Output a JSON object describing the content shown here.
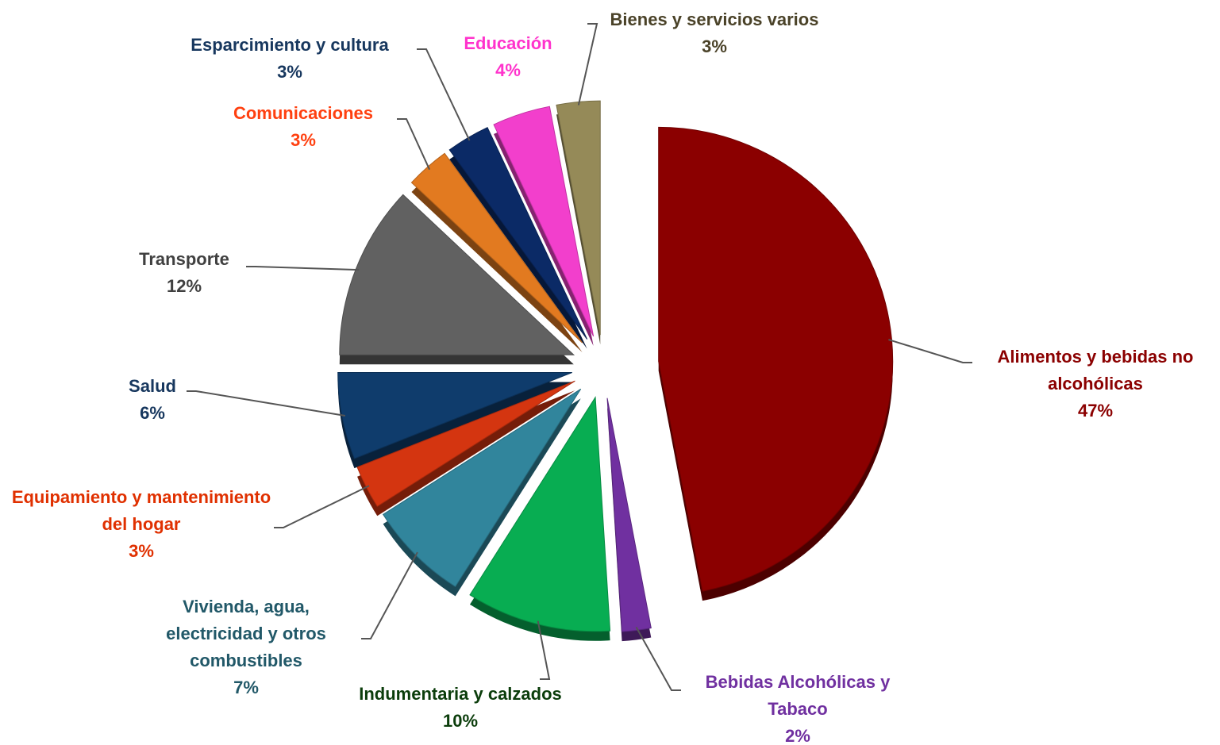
{
  "chart_data": {
    "type": "pie",
    "categories": [
      "Alimentos y bebidas no alcohólicas",
      "Bebidas Alcohólicas y Tabaco",
      "Indumentaria y calzados",
      "Vivienda, agua, electricidad y otros combustibles",
      "Equipamiento y mantenimiento del hogar",
      "Salud",
      "Transporte",
      "Comunicaciones",
      "Esparcimiento y cultura",
      "Educación",
      "Bienes y servicios varios"
    ],
    "values": [
      47,
      2,
      10,
      7,
      3,
      6,
      12,
      3,
      3,
      4,
      3
    ],
    "value_labels": [
      "47%",
      "2%",
      "10%",
      "7%",
      "3%",
      "6%",
      "12%",
      "3%",
      "3%",
      "4%",
      "3%"
    ],
    "colors": [
      "#8b0000",
      "#7030a0",
      "#08ad52",
      "#31859c",
      "#d43510",
      "#0f3c6c",
      "#616161",
      "#e27a20",
      "#0b2a66",
      "#f23fcc",
      "#958a58"
    ],
    "label_colors": [
      "#8b0000",
      "#7030a0",
      "#0b3d0b",
      "#215868",
      "#e03000",
      "#17375e",
      "#404040",
      "#ff4010",
      "#17375e",
      "#ff33cc",
      "#4a4228"
    ]
  }
}
